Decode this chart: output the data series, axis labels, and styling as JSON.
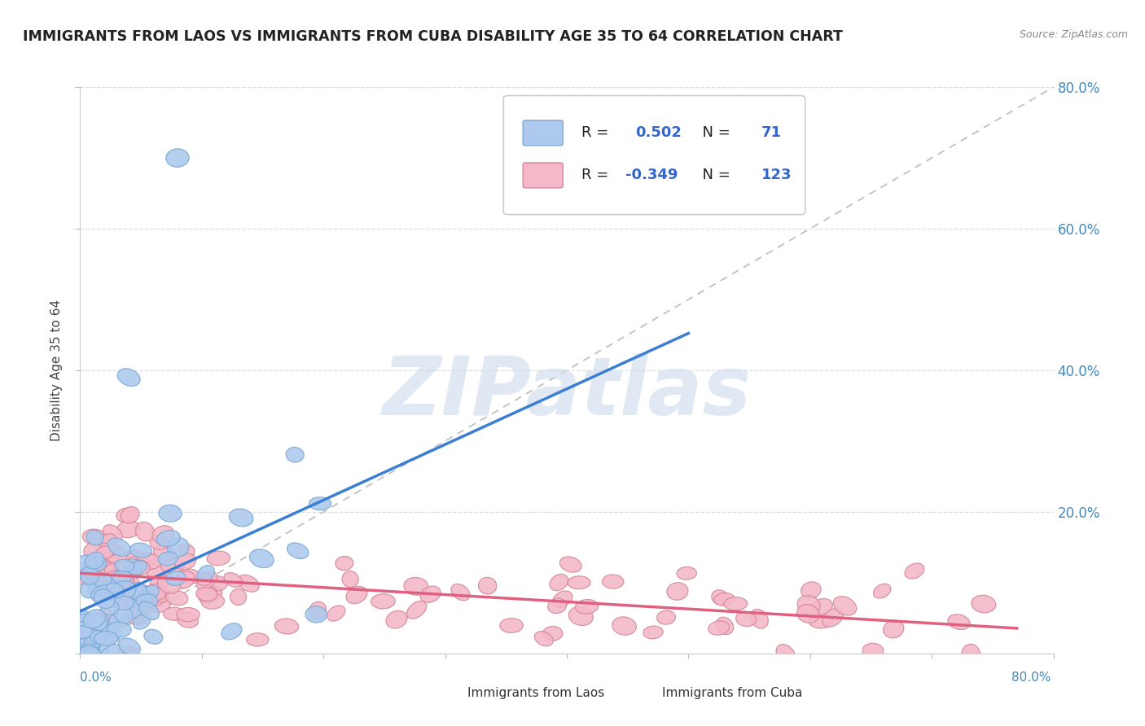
{
  "title": "IMMIGRANTS FROM LAOS VS IMMIGRANTS FROM CUBA DISABILITY AGE 35 TO 64 CORRELATION CHART",
  "source": "Source: ZipAtlas.com",
  "ylabel": "Disability Age 35 to 64",
  "laos_R": "0.502",
  "laos_N": "71",
  "cuba_R": "-0.349",
  "cuba_N": "123",
  "laos_color": "#adc9ed",
  "laos_edge_color": "#7aaad4",
  "laos_line_color": "#3a7fd4",
  "cuba_color": "#f4b8c8",
  "cuba_edge_color": "#d48899",
  "cuba_line_color": "#e06080",
  "ref_line_color": "#c0c0c0",
  "background_color": "#ffffff",
  "watermark_text": "ZIPatlas",
  "watermark_color": "#ccdaec",
  "grid_color": "#dddddd",
  "legend_text_dark": "#222222",
  "legend_text_blue": "#3366cc",
  "axis_label_color": "#4488bb",
  "xlim": [
    0.0,
    0.8
  ],
  "ylim": [
    0.0,
    0.8
  ]
}
